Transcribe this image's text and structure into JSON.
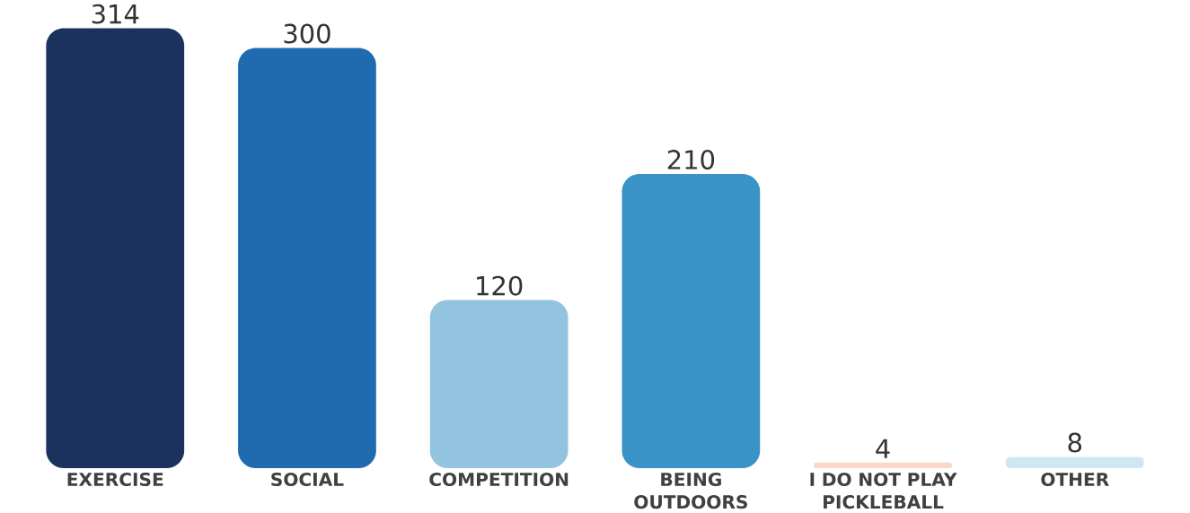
{
  "chart_data": {
    "type": "bar",
    "categories": [
      "EXERCISE",
      "SOCIAL",
      "COMPETITION",
      "BEING OUTDOORS",
      "I DO NOT PLAY PICKLEBALL",
      "OTHER"
    ],
    "values": [
      314,
      300,
      120,
      210,
      4,
      8
    ],
    "colors": [
      "#1b325e",
      "#206bb0",
      "#93c4df",
      "#3a93c6",
      "#fad7c6",
      "#d0e6f2"
    ],
    "data_labels": true
  }
}
